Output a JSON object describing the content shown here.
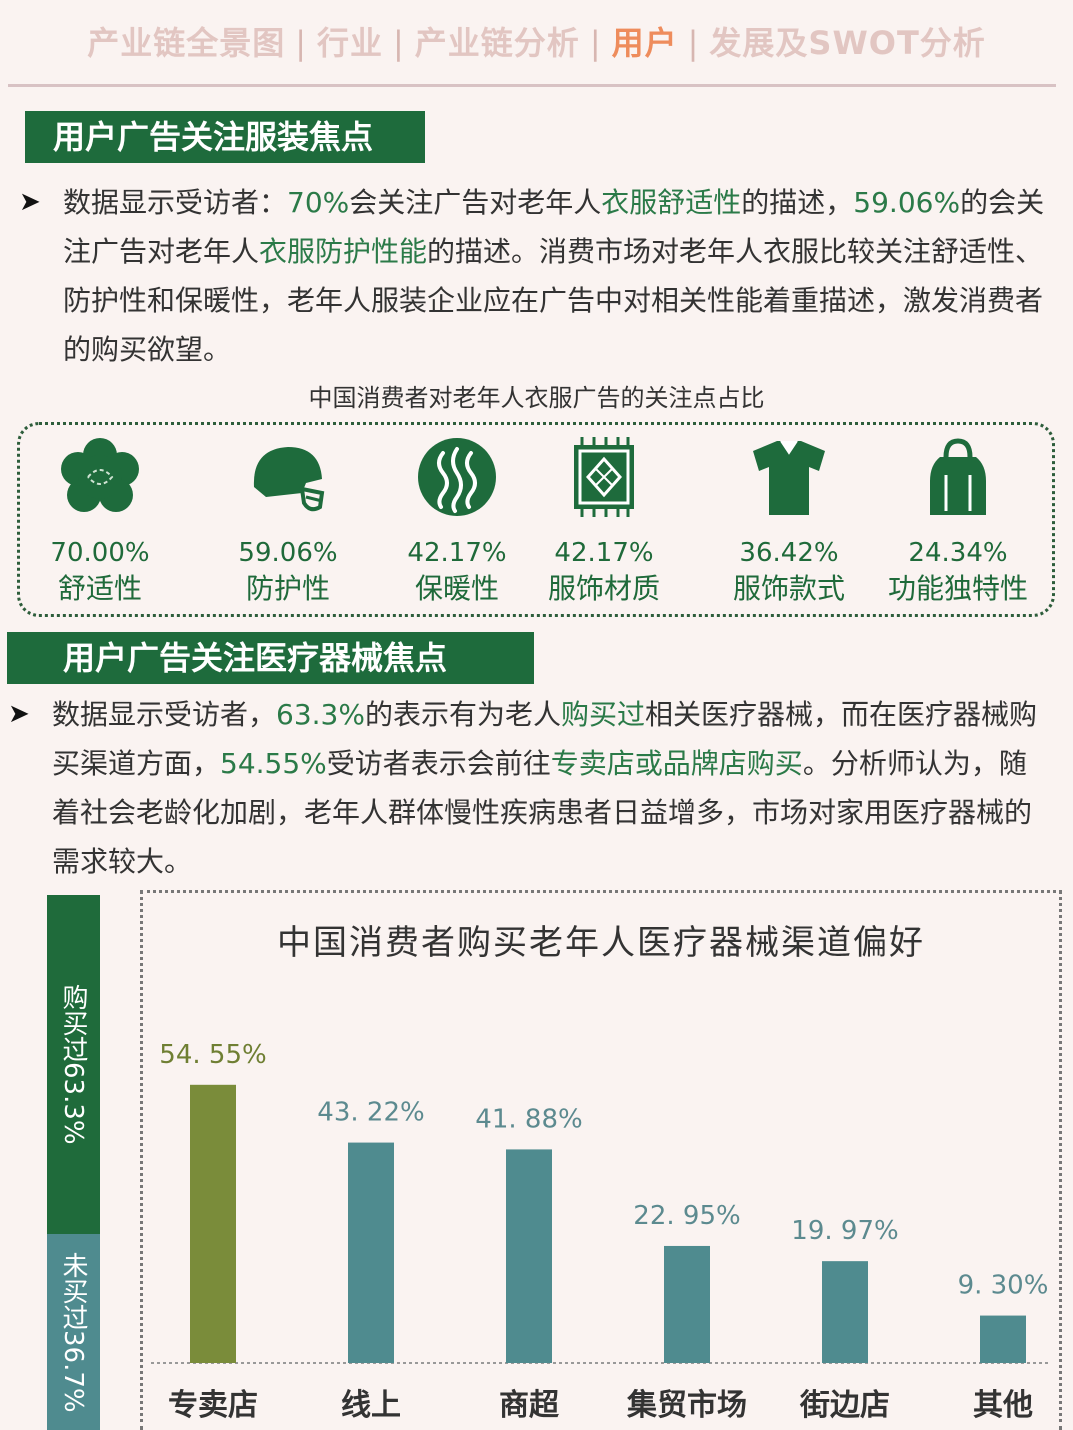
{
  "nav": {
    "items": [
      "产业链全景图",
      "行业",
      "产业链分析",
      "用户",
      "发展及SWOT分析"
    ],
    "active_index": 3,
    "separator": "|"
  },
  "section1": {
    "title": "用户广告关注服装焦点",
    "para": {
      "t1": "数据显示受访者：",
      "h1": "70%",
      "t2": "会关注广告对老年人",
      "h2": "衣服舒适性",
      "t3": "的描述，",
      "h3": "59.06%",
      "t4": "的会关注广告对老年人",
      "h4": "衣服防护性能",
      "t5": "的描述。消费市场对老年人衣服比较关注舒适性、防护性和保暖性，老年人服装企业应在广告中对相关性能着重描述，激发消费者的购买欲望。"
    },
    "caption": "中国消费者对老年人衣服广告的关注点占比",
    "items": [
      {
        "icon": "cotton-flower-icon",
        "value": "70.00%",
        "label": "舒适性"
      },
      {
        "icon": "helmet-icon",
        "value": "59.06%",
        "label": "防护性"
      },
      {
        "icon": "heat-waves-icon",
        "value": "42.17%",
        "label": "保暖性"
      },
      {
        "icon": "fabric-tag-icon",
        "value": "42.17%",
        "label": "服饰材质"
      },
      {
        "icon": "shirt-icon",
        "value": "36.42%",
        "label": "服饰款式"
      },
      {
        "icon": "bag-icon",
        "value": "24.34%",
        "label": "功能独特性"
      }
    ]
  },
  "section2": {
    "title": "用户广告关注医疗器械焦点",
    "para": {
      "t1": "数据显示受访者，",
      "h1": "63.3%",
      "t2": "的表示有为老人",
      "h2": "购买过",
      "t3": "相关医疗器械，而在医疗器械购买渠道方面，",
      "h3": "54.55%",
      "t4": "受访者表示会前往",
      "h4": "专卖店或品牌店购买",
      "t5": "。分析师认为，随着社会老龄化加剧，老年人群体慢性疾病患者日益增多，市场对家用医疗器械的需求较大。"
    },
    "sidebar": {
      "bought_label": "购买过63.3%",
      "bought_value": 63.3,
      "not_bought_label": "未买过36.7%",
      "not_bought_value": 36.7
    }
  },
  "colors": {
    "green_dark": "#1e6b3c",
    "bar_highlight": "#7a8c3a",
    "bar_normal": "#4f8b8f",
    "sidebar_bought": "#1f6b3b",
    "sidebar_not_bought": "#4f8b8f",
    "nav_active": "#ee8c5c"
  },
  "chart_data": {
    "type": "bar",
    "title": "中国消费者购买老年人医疗器械渠道偏好",
    "categories": [
      "专卖店",
      "线上",
      "商超",
      "集贸市场",
      "街边店",
      "其他"
    ],
    "values": [
      54.55,
      43.22,
      41.88,
      22.95,
      19.97,
      9.3
    ],
    "value_labels": [
      "54. 55%",
      "43. 22%",
      "41. 88%",
      "22. 95%",
      "19. 97%",
      "9. 30%"
    ],
    "ylim": [
      0,
      60
    ],
    "grid": false,
    "legend": "none"
  }
}
